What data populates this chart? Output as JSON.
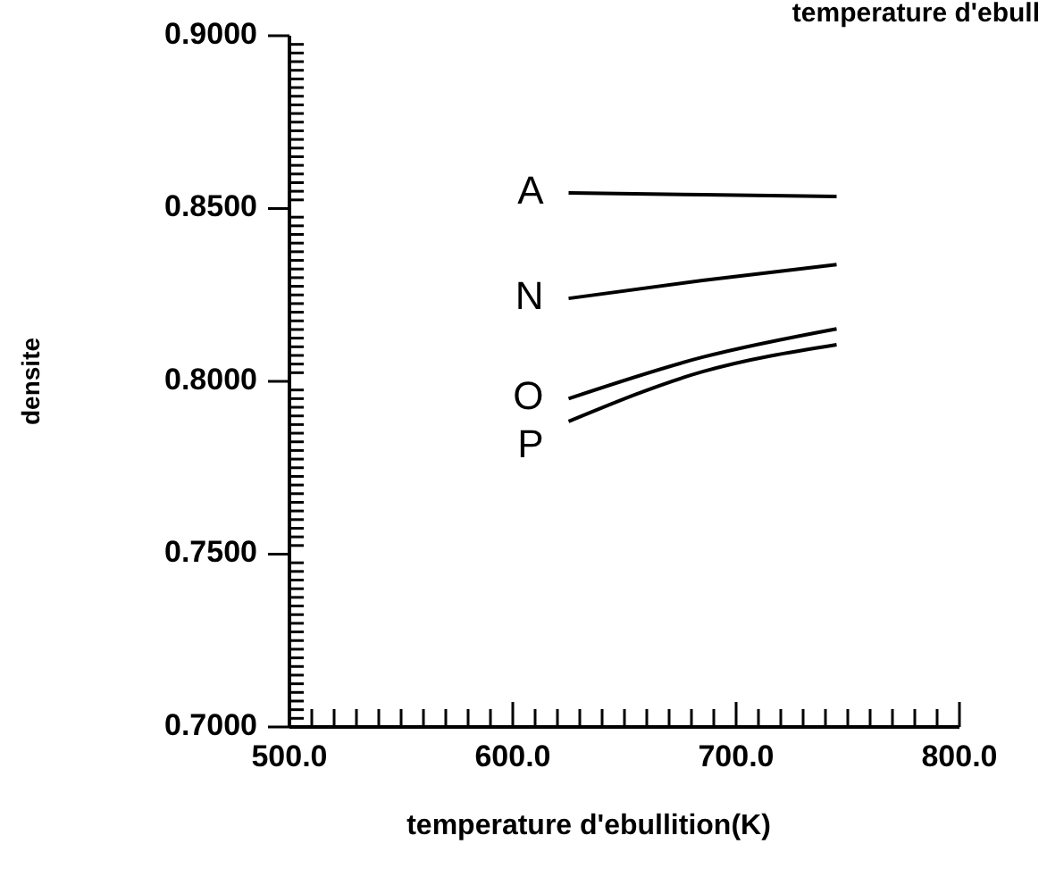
{
  "chart_data": {
    "type": "line",
    "title": "temperature d'ebull",
    "xlabel": "temperature d'ebullition(K)",
    "ylabel": "densite",
    "xlim": [
      500,
      800
    ],
    "ylim": [
      0.7,
      0.9
    ],
    "grid": false,
    "marker": "none",
    "line_style": "solid",
    "xticks": [
      {
        "value": 500,
        "label": "500.0"
      },
      {
        "value": 510,
        "label": null
      },
      {
        "value": 520,
        "label": null
      },
      {
        "value": 530,
        "label": null
      },
      {
        "value": 540,
        "label": null
      },
      {
        "value": 550,
        "label": null
      },
      {
        "value": 560,
        "label": null
      },
      {
        "value": 570,
        "label": null
      },
      {
        "value": 580,
        "label": null
      },
      {
        "value": 590,
        "label": null
      },
      {
        "value": 600,
        "label": "600.0"
      },
      {
        "value": 610,
        "label": null
      },
      {
        "value": 620,
        "label": null
      },
      {
        "value": 630,
        "label": null
      },
      {
        "value": 640,
        "label": null
      },
      {
        "value": 650,
        "label": null
      },
      {
        "value": 660,
        "label": null
      },
      {
        "value": 670,
        "label": null
      },
      {
        "value": 680,
        "label": null
      },
      {
        "value": 690,
        "label": null
      },
      {
        "value": 700,
        "label": "700.0"
      },
      {
        "value": 710,
        "label": null
      },
      {
        "value": 720,
        "label": null
      },
      {
        "value": 730,
        "label": null
      },
      {
        "value": 740,
        "label": null
      },
      {
        "value": 750,
        "label": null
      },
      {
        "value": 760,
        "label": null
      },
      {
        "value": 770,
        "label": null
      },
      {
        "value": 780,
        "label": null
      },
      {
        "value": 790,
        "label": null
      },
      {
        "value": 800,
        "label": "800.0"
      }
    ],
    "yticks": [
      {
        "value": 0.7,
        "label": "0.7000"
      },
      {
        "value": 0.7025,
        "label": null
      },
      {
        "value": 0.705,
        "label": null
      },
      {
        "value": 0.7075,
        "label": null
      },
      {
        "value": 0.71,
        "label": null
      },
      {
        "value": 0.7125,
        "label": null
      },
      {
        "value": 0.715,
        "label": null
      },
      {
        "value": 0.7175,
        "label": null
      },
      {
        "value": 0.72,
        "label": null
      },
      {
        "value": 0.7225,
        "label": null
      },
      {
        "value": 0.725,
        "label": null
      },
      {
        "value": 0.7275,
        "label": null
      },
      {
        "value": 0.73,
        "label": null
      },
      {
        "value": 0.7325,
        "label": null
      },
      {
        "value": 0.735,
        "label": null
      },
      {
        "value": 0.7375,
        "label": null
      },
      {
        "value": 0.74,
        "label": null
      },
      {
        "value": 0.7425,
        "label": null
      },
      {
        "value": 0.745,
        "label": null
      },
      {
        "value": 0.7475,
        "label": null
      },
      {
        "value": 0.75,
        "label": "0.7500"
      },
      {
        "value": 0.7525,
        "label": null
      },
      {
        "value": 0.755,
        "label": null
      },
      {
        "value": 0.7575,
        "label": null
      },
      {
        "value": 0.76,
        "label": null
      },
      {
        "value": 0.7625,
        "label": null
      },
      {
        "value": 0.765,
        "label": null
      },
      {
        "value": 0.7675,
        "label": null
      },
      {
        "value": 0.77,
        "label": null
      },
      {
        "value": 0.7725,
        "label": null
      },
      {
        "value": 0.775,
        "label": null
      },
      {
        "value": 0.7775,
        "label": null
      },
      {
        "value": 0.78,
        "label": null
      },
      {
        "value": 0.7825,
        "label": null
      },
      {
        "value": 0.785,
        "label": null
      },
      {
        "value": 0.7875,
        "label": null
      },
      {
        "value": 0.79,
        "label": null
      },
      {
        "value": 0.7925,
        "label": null
      },
      {
        "value": 0.795,
        "label": null
      },
      {
        "value": 0.7975,
        "label": null
      },
      {
        "value": 0.8,
        "label": "0.8000"
      },
      {
        "value": 0.8025,
        "label": null
      },
      {
        "value": 0.805,
        "label": null
      },
      {
        "value": 0.8075,
        "label": null
      },
      {
        "value": 0.81,
        "label": null
      },
      {
        "value": 0.8125,
        "label": null
      },
      {
        "value": 0.815,
        "label": null
      },
      {
        "value": 0.8175,
        "label": null
      },
      {
        "value": 0.82,
        "label": null
      },
      {
        "value": 0.8225,
        "label": null
      },
      {
        "value": 0.825,
        "label": null
      },
      {
        "value": 0.8275,
        "label": null
      },
      {
        "value": 0.83,
        "label": null
      },
      {
        "value": 0.8325,
        "label": null
      },
      {
        "value": 0.835,
        "label": null
      },
      {
        "value": 0.8375,
        "label": null
      },
      {
        "value": 0.84,
        "label": null
      },
      {
        "value": 0.8425,
        "label": null
      },
      {
        "value": 0.845,
        "label": null
      },
      {
        "value": 0.8475,
        "label": null
      },
      {
        "value": 0.85,
        "label": "0.8500"
      },
      {
        "value": 0.8525,
        "label": null
      },
      {
        "value": 0.855,
        "label": null
      },
      {
        "value": 0.8575,
        "label": null
      },
      {
        "value": 0.86,
        "label": null
      },
      {
        "value": 0.8625,
        "label": null
      },
      {
        "value": 0.865,
        "label": null
      },
      {
        "value": 0.8675,
        "label": null
      },
      {
        "value": 0.87,
        "label": null
      },
      {
        "value": 0.8725,
        "label": null
      },
      {
        "value": 0.875,
        "label": null
      },
      {
        "value": 0.8775,
        "label": null
      },
      {
        "value": 0.88,
        "label": null
      },
      {
        "value": 0.8825,
        "label": null
      },
      {
        "value": 0.885,
        "label": null
      },
      {
        "value": 0.8875,
        "label": null
      },
      {
        "value": 0.89,
        "label": null
      },
      {
        "value": 0.8925,
        "label": null
      },
      {
        "value": 0.895,
        "label": null
      },
      {
        "value": 0.8975,
        "label": null
      },
      {
        "value": 0.9,
        "label": "0.9000"
      }
    ],
    "series": [
      {
        "name": "A",
        "color": "#000000",
        "x": [
          625,
          685,
          745
        ],
        "values": [
          0.8545,
          0.854,
          0.8535
        ]
      },
      {
        "name": "N",
        "color": "#000000",
        "x": [
          625,
          685,
          745
        ],
        "values": [
          0.824,
          0.8292,
          0.8338
        ]
      },
      {
        "name": "O",
        "color": "#000000",
        "x": [
          625,
          685,
          745
        ],
        "values": [
          0.795,
          0.807,
          0.8152
        ]
      },
      {
        "name": "P",
        "color": "#000000",
        "x": [
          625,
          685,
          745
        ],
        "values": [
          0.7884,
          0.8028,
          0.8106
        ]
      }
    ]
  }
}
